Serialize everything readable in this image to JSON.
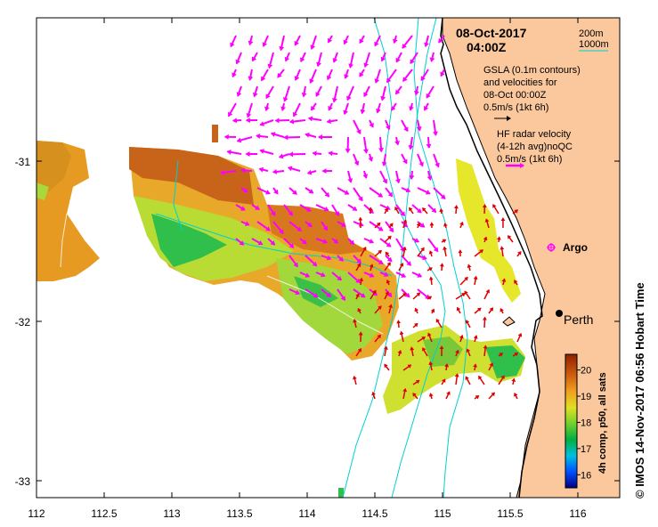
{
  "date": "08-Oct-2017",
  "time": "04:00Z",
  "depth_legend": [
    "200m",
    "1000m"
  ],
  "gsla_lines": [
    "GSLA (0.1m contours)",
    "and velocities for",
    "08-Oct 00:00Z",
    "0.5m/s (1kt 6h)"
  ],
  "hf_lines": [
    "HF radar velocity",
    "(4-12h avg)noQC",
    "0.5m/s (1kt 6h)"
  ],
  "argo_label": "Argo",
  "city_label": "Perth",
  "colorbar": {
    "title": "4h comp, p50, all sats",
    "ticks": [
      "16",
      "17",
      "18",
      "19",
      "20"
    ],
    "range": [
      15.5,
      20.6
    ]
  },
  "side_credit": "© IMOS 14-Nov-2017 06:56 Hobart Time",
  "x_ticks": [
    "112",
    "112.5",
    "113",
    "113.5",
    "114",
    "114.5",
    "115",
    "115.5",
    "116"
  ],
  "y_ticks": [
    "-31",
    "-32",
    "-33"
  ],
  "colors": {
    "land": "#fbc79c",
    "sst_arrows": "#ff00ff",
    "hf_arrows": "#e00000",
    "isobath": "#00d0d0",
    "argo": "#ff00ff"
  }
}
